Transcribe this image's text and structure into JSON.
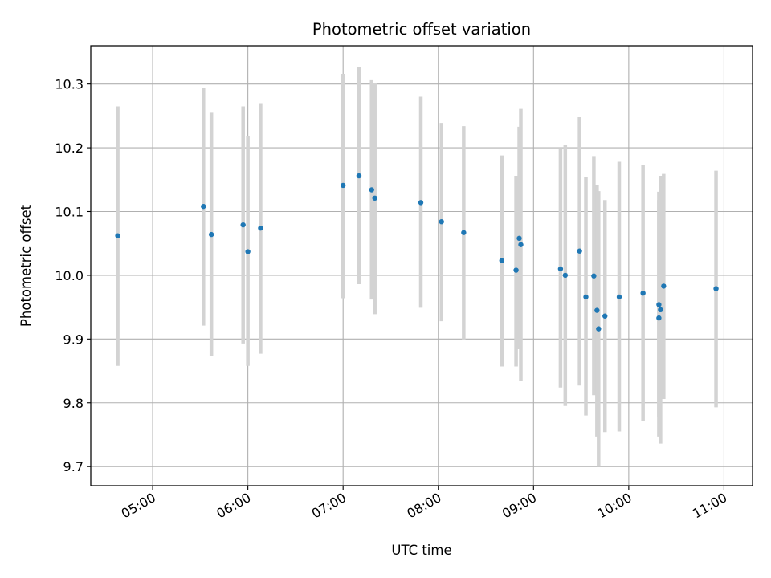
{
  "chart_data": {
    "type": "scatter",
    "title": "Photometric offset variation",
    "xlabel": "UTC time",
    "ylabel": "Photometric offset",
    "x_unit": "UTC time (HH:MM)",
    "xlim": [
      "04:21",
      "11:18"
    ],
    "ylim": [
      9.67,
      10.36
    ],
    "x_ticks": [
      "05:00",
      "06:00",
      "07:00",
      "08:00",
      "09:00",
      "10:00",
      "11:00"
    ],
    "y_ticks": [
      "9.7",
      "9.8",
      "9.9",
      "10.0",
      "10.1",
      "10.2",
      "10.3"
    ],
    "grid": true,
    "colors": {
      "marker": "#1f77b4",
      "errorbar": "#d3d3d3",
      "grid": "#b0b0b0",
      "axes": "#000000"
    },
    "points": [
      {
        "t": "04:38",
        "y": 10.062,
        "ylo": 9.858,
        "yhi": 10.265
      },
      {
        "t": "05:32",
        "y": 10.108,
        "ylo": 9.921,
        "yhi": 10.294
      },
      {
        "t": "05:37",
        "y": 10.064,
        "ylo": 9.873,
        "yhi": 10.255
      },
      {
        "t": "05:57",
        "y": 10.079,
        "ylo": 9.893,
        "yhi": 10.265
      },
      {
        "t": "06:00",
        "y": 10.037,
        "ylo": 9.858,
        "yhi": 10.218
      },
      {
        "t": "06:08",
        "y": 10.074,
        "ylo": 9.877,
        "yhi": 10.27
      },
      {
        "t": "07:00",
        "y": 10.141,
        "ylo": 9.964,
        "yhi": 10.316
      },
      {
        "t": "07:10",
        "y": 10.156,
        "ylo": 9.986,
        "yhi": 10.326
      },
      {
        "t": "07:18",
        "y": 10.134,
        "ylo": 9.962,
        "yhi": 10.306
      },
      {
        "t": "07:20",
        "y": 10.121,
        "ylo": 9.939,
        "yhi": 10.302
      },
      {
        "t": "07:49",
        "y": 10.114,
        "ylo": 9.949,
        "yhi": 10.28
      },
      {
        "t": "08:02",
        "y": 10.084,
        "ylo": 9.928,
        "yhi": 10.239
      },
      {
        "t": "08:16",
        "y": 10.067,
        "ylo": 9.899,
        "yhi": 10.234
      },
      {
        "t": "08:40",
        "y": 10.023,
        "ylo": 9.857,
        "yhi": 10.188
      },
      {
        "t": "08:49",
        "y": 10.008,
        "ylo": 9.857,
        "yhi": 10.156
      },
      {
        "t": "08:51",
        "y": 10.058,
        "ylo": 9.884,
        "yhi": 10.233
      },
      {
        "t": "08:52",
        "y": 10.048,
        "ylo": 9.834,
        "yhi": 10.261
      },
      {
        "t": "09:17",
        "y": 10.01,
        "ylo": 9.824,
        "yhi": 10.198
      },
      {
        "t": "09:20",
        "y": 10.0,
        "ylo": 9.795,
        "yhi": 10.205
      },
      {
        "t": "09:29",
        "y": 10.038,
        "ylo": 9.827,
        "yhi": 10.248
      },
      {
        "t": "09:33",
        "y": 9.966,
        "ylo": 9.78,
        "yhi": 10.154
      },
      {
        "t": "09:38",
        "y": 9.999,
        "ylo": 9.812,
        "yhi": 10.187
      },
      {
        "t": "09:40",
        "y": 9.945,
        "ylo": 9.747,
        "yhi": 10.142
      },
      {
        "t": "09:41",
        "y": 9.916,
        "ylo": 9.7,
        "yhi": 10.132
      },
      {
        "t": "09:45",
        "y": 9.936,
        "ylo": 9.754,
        "yhi": 10.118
      },
      {
        "t": "09:54",
        "y": 9.966,
        "ylo": 9.755,
        "yhi": 10.178
      },
      {
        "t": "10:09",
        "y": 9.972,
        "ylo": 9.771,
        "yhi": 10.173
      },
      {
        "t": "10:19",
        "y": 9.954,
        "ylo": 9.777,
        "yhi": 10.131
      },
      {
        "t": "10:19",
        "y": 9.933,
        "ylo": 9.747,
        "yhi": 10.118
      },
      {
        "t": "10:20",
        "y": 9.946,
        "ylo": 9.736,
        "yhi": 10.156
      },
      {
        "t": "10:22",
        "y": 9.983,
        "ylo": 9.806,
        "yhi": 10.159
      },
      {
        "t": "10:55",
        "y": 9.979,
        "ylo": 9.793,
        "yhi": 10.164
      }
    ]
  }
}
